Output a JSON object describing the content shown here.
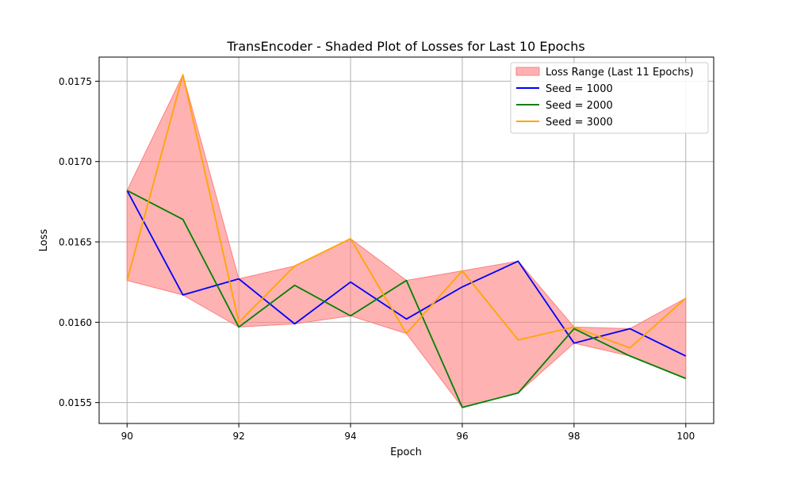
{
  "chart_data": {
    "type": "line",
    "title": "TransEncoder - Shaded Plot of Losses for Last 10 Epochs",
    "xlabel": "Epoch",
    "ylabel": "Loss",
    "x": [
      90,
      91,
      92,
      93,
      94,
      95,
      96,
      97,
      98,
      99,
      100
    ],
    "xlim": [
      89.5,
      100.5
    ],
    "ylim": [
      0.01537,
      0.01765
    ],
    "xticks": [
      90,
      92,
      94,
      96,
      98,
      100
    ],
    "yticks": [
      0.0155,
      0.016,
      0.0165,
      0.017,
      0.0175
    ],
    "xtick_labels": [
      "90",
      "92",
      "94",
      "96",
      "98",
      "100"
    ],
    "ytick_labels": [
      "0.0155",
      "0.0160",
      "0.0165",
      "0.0170",
      "0.0175"
    ],
    "grid": true,
    "legend_position": "top-right",
    "shaded_band": {
      "name": "Loss Range (Last 11 Epochs)",
      "color": "#ff7f7f"
    },
    "series": [
      {
        "name": "Seed = 1000",
        "color": "#0000ff",
        "values": [
          0.01682,
          0.01617,
          0.01627,
          0.01599,
          0.01625,
          0.01602,
          0.01622,
          0.01638,
          0.01587,
          0.01596,
          0.01579
        ]
      },
      {
        "name": "Seed = 2000",
        "color": "#008000",
        "values": [
          0.01682,
          0.01664,
          0.01597,
          0.01623,
          0.01604,
          0.01626,
          0.01547,
          0.01556,
          0.01596,
          0.01579,
          0.01565
        ]
      },
      {
        "name": "Seed = 3000",
        "color": "#ffa500",
        "values": [
          0.01626,
          0.01754,
          0.016,
          0.01635,
          0.01652,
          0.01593,
          0.01632,
          0.01589,
          0.01597,
          0.01584,
          0.01615
        ]
      }
    ]
  }
}
